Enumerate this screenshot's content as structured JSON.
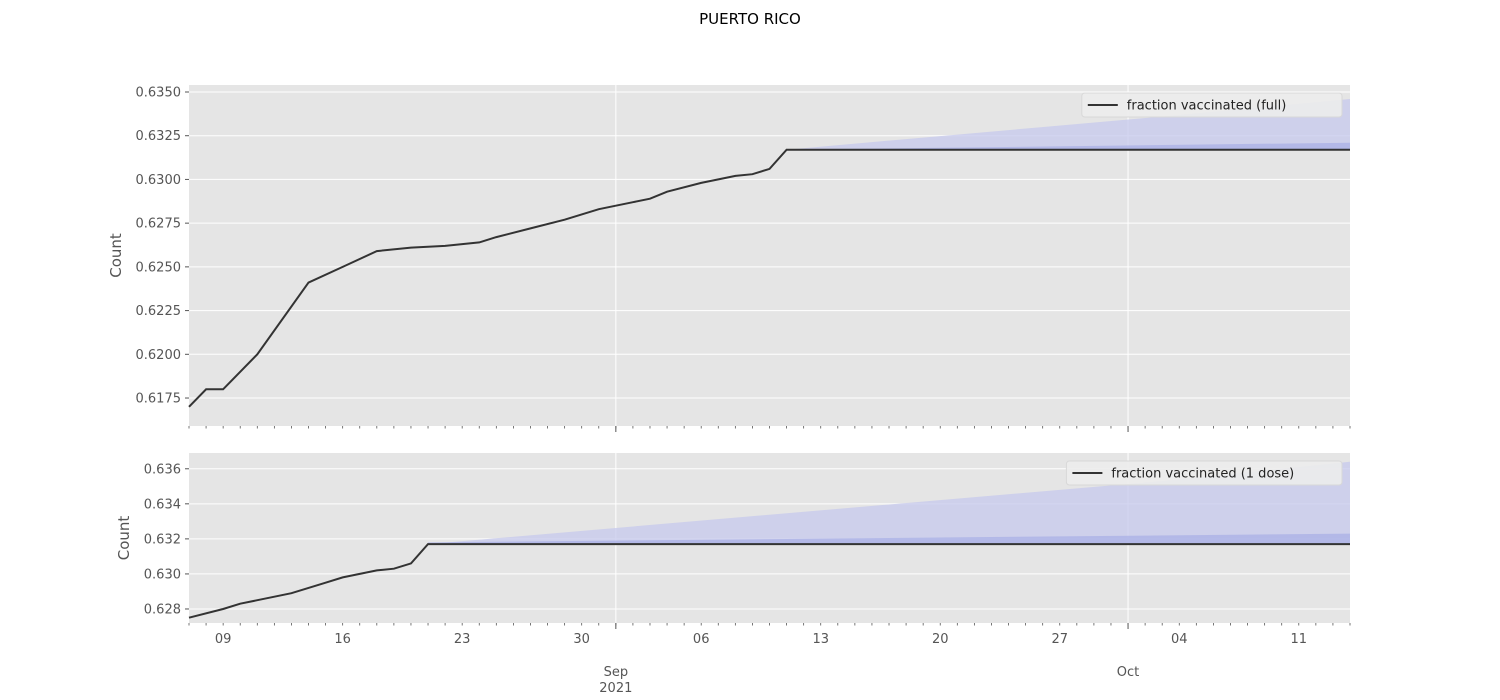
{
  "title": "PUERTO RICO",
  "colors": {
    "line": "#333333",
    "band_outer": "#c5c8ec",
    "band_inner": "#aab0e6",
    "panel_bg": "#e5e5e5",
    "grid": "#ffffff"
  },
  "chart_data": [
    {
      "type": "line",
      "ylabel": "Count",
      "ylim": [
        0.6159,
        0.6354
      ],
      "yticks": [
        0.6175,
        0.62,
        0.6225,
        0.625,
        0.6275,
        0.63,
        0.6325,
        0.635
      ],
      "ytick_labels": [
        "0.6175",
        "0.6200",
        "0.6225",
        "0.6250",
        "0.6275",
        "0.6300",
        "0.6325",
        "0.6350"
      ],
      "legend": "top-right",
      "series": [
        {
          "name": "fraction vaccinated (full)",
          "x": [
            "2021-08-07",
            "2021-08-08",
            "2021-08-09",
            "2021-08-11",
            "2021-08-14",
            "2021-08-16",
            "2021-08-18",
            "2021-08-20",
            "2021-08-22",
            "2021-08-24",
            "2021-08-25",
            "2021-08-27",
            "2021-08-29",
            "2021-08-30",
            "2021-08-31",
            "2021-09-01",
            "2021-09-02",
            "2021-09-03",
            "2021-09-04",
            "2021-09-06",
            "2021-09-08",
            "2021-09-09",
            "2021-09-10",
            "2021-09-11",
            "2021-10-14"
          ],
          "values": [
            0.617,
            0.618,
            0.618,
            0.62,
            0.6241,
            0.625,
            0.6259,
            0.6261,
            0.6262,
            0.6264,
            0.6267,
            0.6272,
            0.6277,
            0.628,
            0.6283,
            0.6285,
            0.6287,
            0.6289,
            0.6293,
            0.6298,
            0.6302,
            0.6303,
            0.6306,
            0.6317,
            0.6317
          ]
        }
      ],
      "forecast_band_outer": {
        "x": [
          "2021-09-11",
          "2021-10-03",
          "2021-10-14"
        ],
        "lower": [
          0.6317,
          0.6317,
          0.6317
        ],
        "upper": [
          0.6317,
          0.6336,
          0.6346
        ]
      },
      "forecast_band_inner": {
        "x": [
          "2021-09-11",
          "2021-10-14"
        ],
        "lower": [
          0.6317,
          0.6317
        ],
        "upper": [
          0.6317,
          0.6321
        ]
      }
    },
    {
      "type": "line",
      "ylabel": "Count",
      "ylim": [
        0.6272,
        0.6369
      ],
      "yticks": [
        0.628,
        0.63,
        0.632,
        0.634,
        0.636
      ],
      "ytick_labels": [
        "0.628",
        "0.630",
        "0.632",
        "0.634",
        "0.636"
      ],
      "legend": "top-right",
      "series": [
        {
          "name": "fraction vaccinated (1 dose)",
          "x": [
            "2021-08-07",
            "2021-08-09",
            "2021-08-10",
            "2021-08-11",
            "2021-08-12",
            "2021-08-13",
            "2021-08-15",
            "2021-08-16",
            "2021-08-18",
            "2021-08-19",
            "2021-08-20",
            "2021-08-21",
            "2021-10-14"
          ],
          "values": [
            0.6275,
            0.628,
            0.6283,
            0.6285,
            0.6287,
            0.6289,
            0.6295,
            0.6298,
            0.6302,
            0.6303,
            0.6306,
            0.6317,
            0.6317
          ]
        }
      ],
      "forecast_band_outer": {
        "x": [
          "2021-08-21",
          "2021-10-03",
          "2021-10-14"
        ],
        "lower": [
          0.6317,
          0.6317,
          0.6317
        ],
        "upper": [
          0.6317,
          0.6353,
          0.6364
        ]
      },
      "forecast_band_inner": {
        "x": [
          "2021-08-21",
          "2021-10-14"
        ],
        "lower": [
          0.6317,
          0.6317
        ],
        "upper": [
          0.6318,
          0.6323
        ]
      }
    }
  ],
  "x_axis": {
    "range": [
      "2021-08-07",
      "2021-10-14"
    ],
    "major_ticks": [
      {
        "date": "2021-08-09",
        "label": "09"
      },
      {
        "date": "2021-08-16",
        "label": "16"
      },
      {
        "date": "2021-08-23",
        "label": "23"
      },
      {
        "date": "2021-08-30",
        "label": "30"
      },
      {
        "date": "2021-09-06",
        "label": "06"
      },
      {
        "date": "2021-09-13",
        "label": "13"
      },
      {
        "date": "2021-09-20",
        "label": "20"
      },
      {
        "date": "2021-09-27",
        "label": "27"
      },
      {
        "date": "2021-10-04",
        "label": "04"
      },
      {
        "date": "2021-10-11",
        "label": "11"
      }
    ],
    "month_ticks": [
      {
        "date": "2021-09-01",
        "label": "Sep",
        "sublabel": "2021"
      },
      {
        "date": "2021-10-01",
        "label": "Oct",
        "sublabel": ""
      }
    ]
  }
}
